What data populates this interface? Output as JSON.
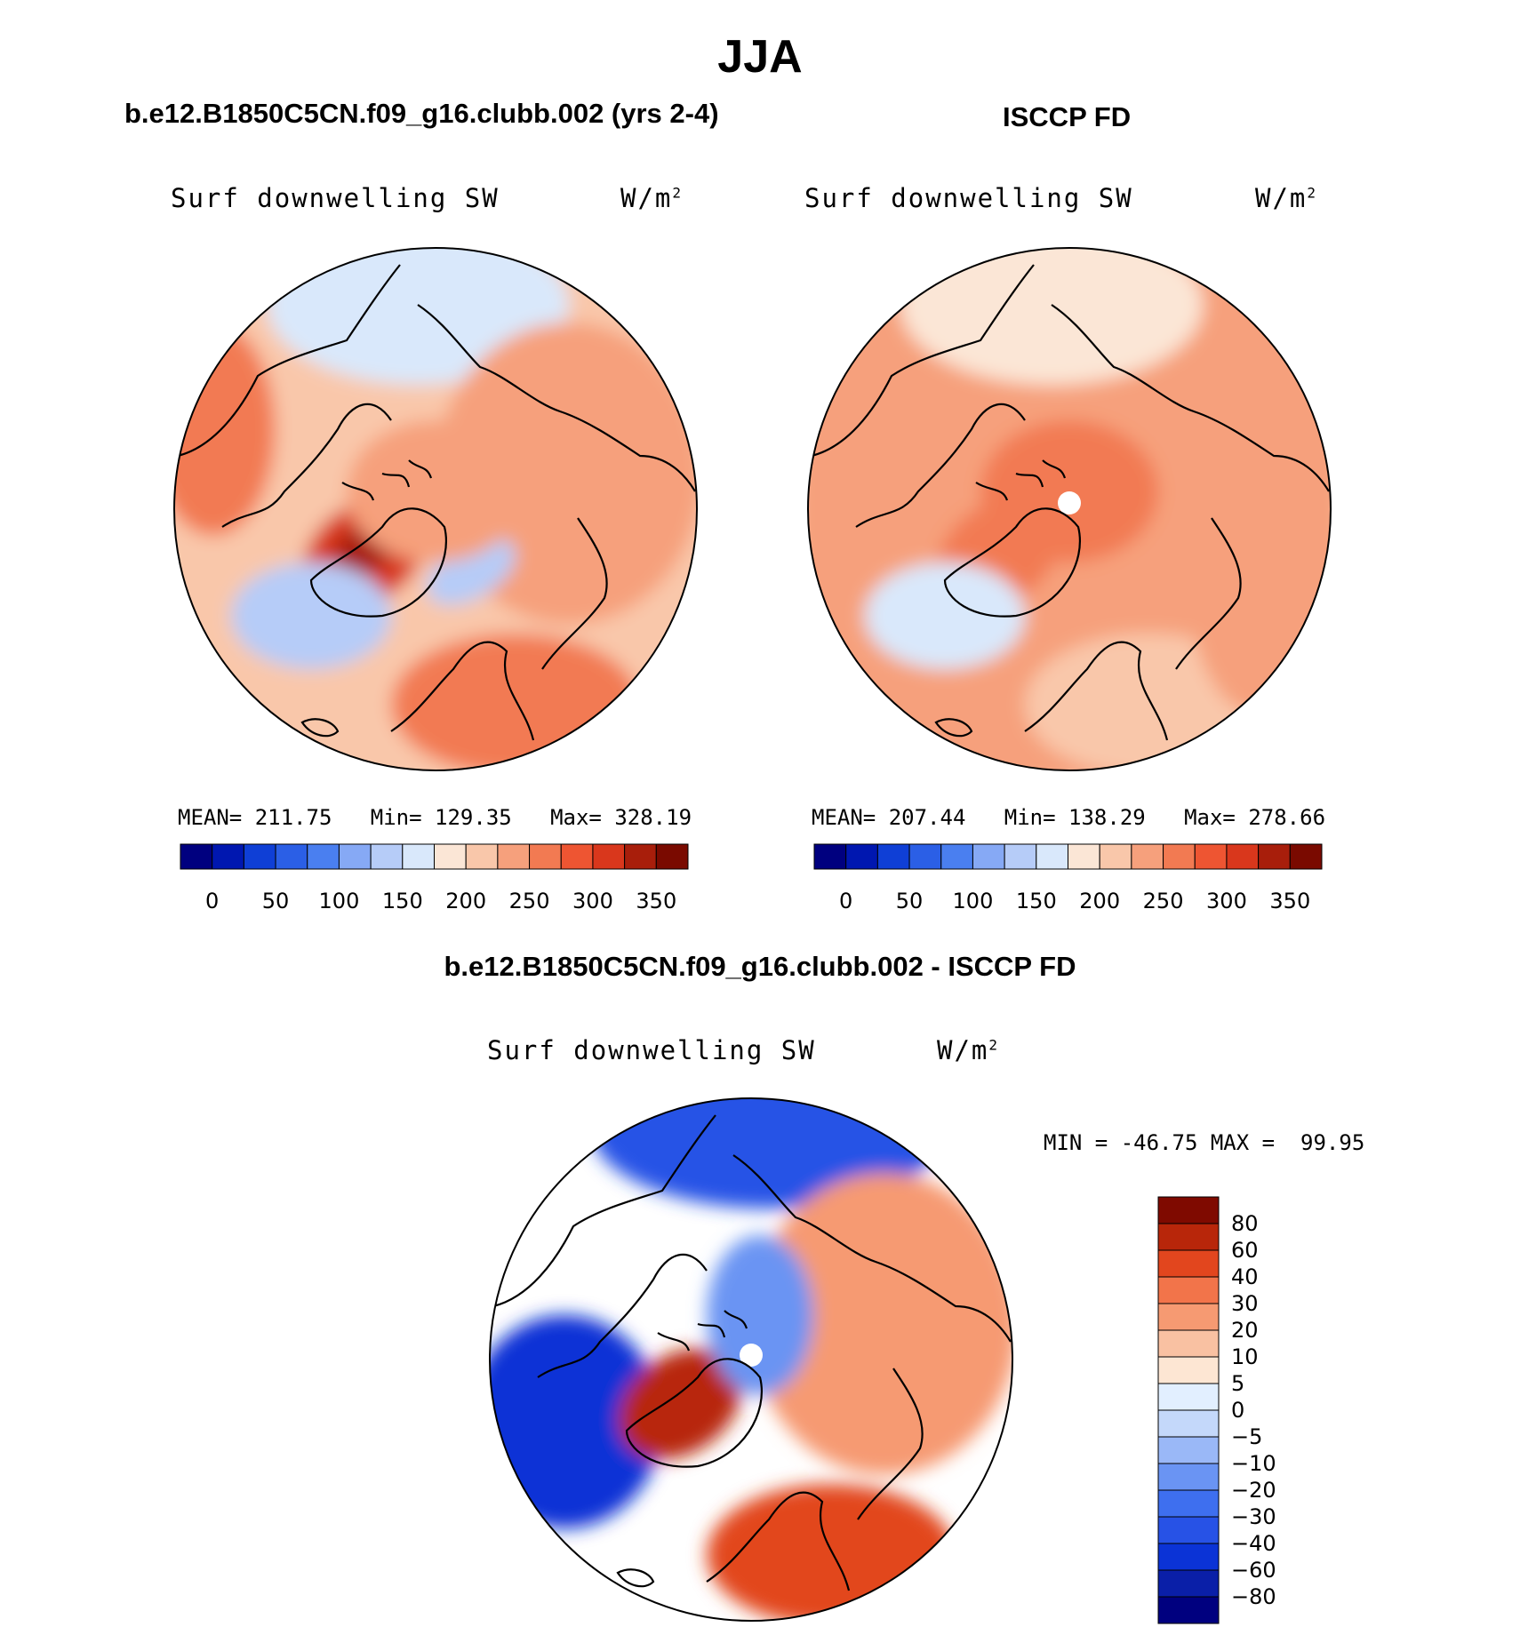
{
  "main_title": "JJA",
  "colors": {
    "abs_scale": [
      "#00007f",
      "#0017b0",
      "#0f3fd6",
      "#2b5fe6",
      "#4a7ff0",
      "#86a9f5",
      "#b6ccf8",
      "#d9e8fb",
      "#fbe6d6",
      "#f9c7aa",
      "#f6a07c",
      "#f27a52",
      "#ee5532",
      "#d9371c",
      "#a81e0b",
      "#7a0a00"
    ],
    "diff_scale": [
      "#00007f",
      "#0a1fa8",
      "#0b33d6",
      "#2752e6",
      "#3e6fef",
      "#6a94f3",
      "#9ab8f7",
      "#c4d8fa",
      "#e2efff",
      "#fde6d3",
      "#f9c1a2",
      "#f69a72",
      "#f2744a",
      "#e2461e",
      "#b8260a",
      "#7f0a00"
    ],
    "missing": "#ffffff",
    "coast": "#000000"
  },
  "chart_data": [
    {
      "type": "heatmap",
      "panel": "top-left",
      "title": "b.e12.B1850C5CN.f09_g16.clubb.002 (yrs 2-4)",
      "variable": "Surf downwelling SW",
      "units": "W/m",
      "units_power": "2",
      "projection": "north polar stereographic",
      "stats": {
        "mean_label": "MEAN=",
        "mean": "211.75",
        "min_label": "Min=",
        "min": "129.35",
        "max_label": "Max=",
        "max": "328.19"
      },
      "colorbar": {
        "orientation": "horizontal",
        "tick_labels": [
          "0",
          "50",
          "100",
          "150",
          "200",
          "250",
          "300",
          "350"
        ]
      },
      "regions": [
        {
          "name": "base",
          "v": 205
        },
        {
          "name": "pacific-sector",
          "v": 160
        },
        {
          "name": "siberia",
          "v": 245
        },
        {
          "name": "greenland",
          "v": 310
        },
        {
          "name": "greenland-core",
          "v": 328
        },
        {
          "name": "greenland-sea",
          "v": 140
        },
        {
          "name": "n-atlantic",
          "v": 135
        },
        {
          "name": "europe",
          "v": 270
        },
        {
          "name": "alaska",
          "v": 265
        },
        {
          "name": "central-arctic",
          "v": 240
        }
      ]
    },
    {
      "type": "heatmap",
      "panel": "top-right",
      "title": "ISCCP FD",
      "variable": "Surf downwelling SW",
      "units": "W/m",
      "units_power": "2",
      "projection": "north polar stereographic",
      "stats": {
        "mean_label": "MEAN=",
        "mean": "207.44",
        "min_label": "Min=",
        "min": "138.29",
        "max_label": "Max=",
        "max": "278.66"
      },
      "colorbar": {
        "orientation": "horizontal",
        "tick_labels": [
          "0",
          "50",
          "100",
          "150",
          "200",
          "250",
          "300",
          "350"
        ]
      },
      "regions": [
        {
          "name": "base",
          "v": 230
        },
        {
          "name": "pacific-sector",
          "v": 190
        },
        {
          "name": "central-arctic",
          "v": 250
        },
        {
          "name": "greenland",
          "v": 265
        },
        {
          "name": "n-atlantic",
          "v": 160
        },
        {
          "name": "europe",
          "v": 215
        },
        {
          "name": "eurasia-east",
          "v": 245
        }
      ]
    },
    {
      "type": "heatmap",
      "panel": "bottom",
      "title": "b.e12.B1850C5CN.f09_g16.clubb.002 - ISCCP FD",
      "variable": "Surf downwelling SW",
      "units": "W/m",
      "units_power": "2",
      "projection": "north polar stereographic",
      "stats": {
        "min_label": "MIN =",
        "min": "-46.75",
        "max_label": "MAX =",
        "max": "99.95"
      },
      "colorbar": {
        "orientation": "vertical",
        "tick_labels": [
          "80",
          "60",
          "40",
          "30",
          "20",
          "10",
          "5",
          "0",
          "−5",
          "−10",
          "−20",
          "−30",
          "−40",
          "−60",
          "−80"
        ]
      },
      "regions": [
        {
          "name": "pacific",
          "v": -35
        },
        {
          "name": "canada",
          "v": -45
        },
        {
          "name": "greenland",
          "v": 70
        },
        {
          "name": "siberia",
          "v": 20
        },
        {
          "name": "europe",
          "v": 40
        },
        {
          "name": "arctic-ocean",
          "v": -15
        }
      ]
    }
  ]
}
